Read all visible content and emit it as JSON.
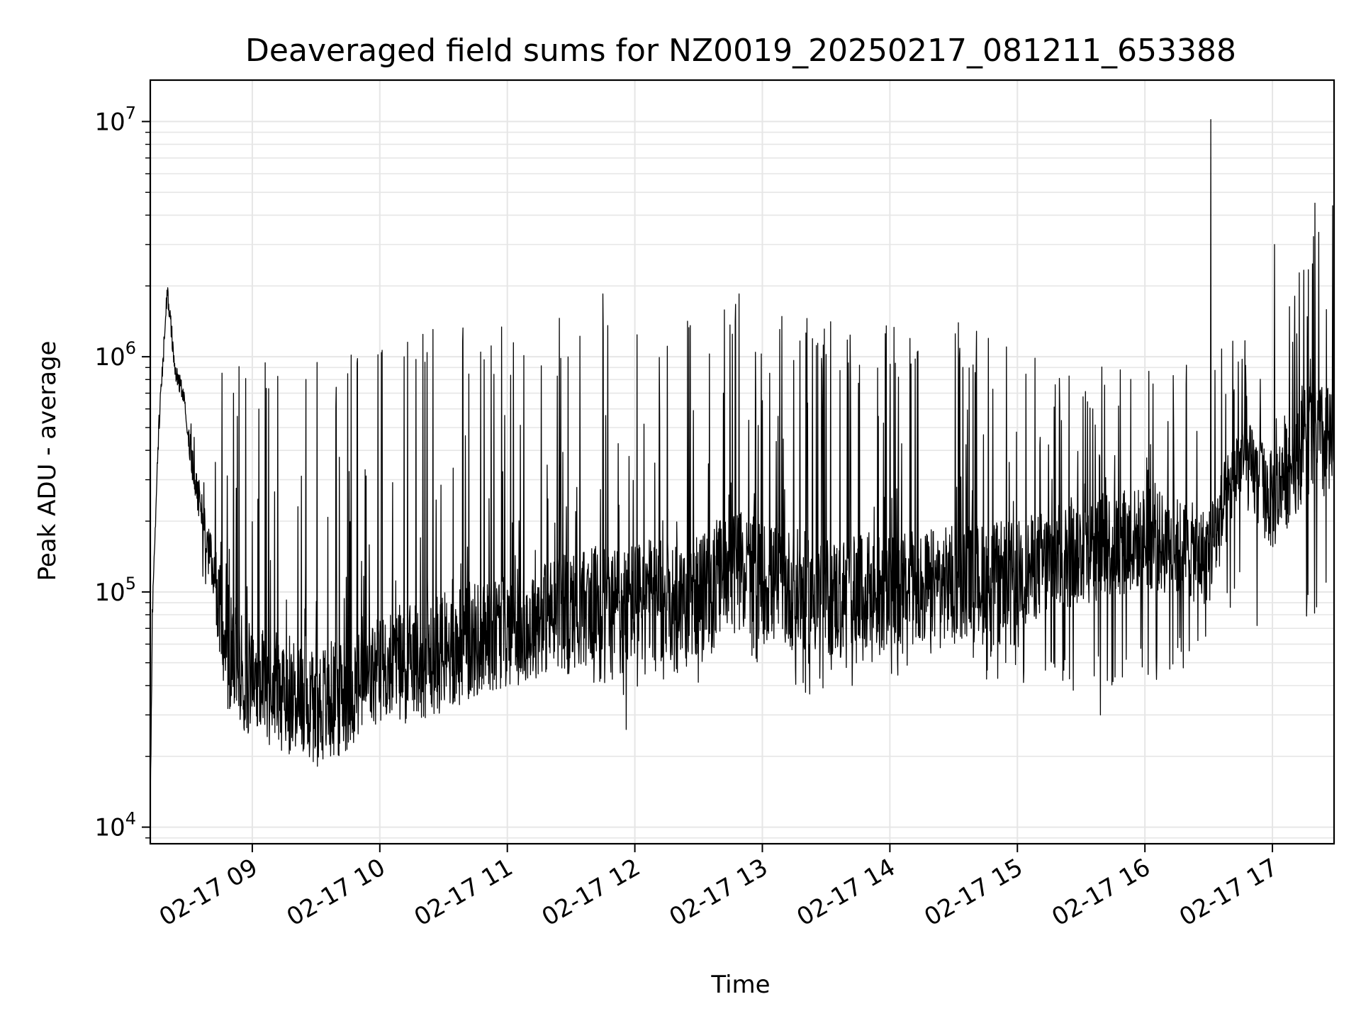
{
  "chart_data": {
    "type": "line",
    "title": "Deaveraged field sums for NZ0019_20250217_081211_653388",
    "xlabel": "Time",
    "ylabel": "Peak ADU - average",
    "yscale": "log",
    "ylim": [
      8500,
      15000000
    ],
    "xlim": [
      "2025-02-17 08:12",
      "2025-02-17 17:29"
    ],
    "grid": true,
    "line_color": "#000000",
    "grid_color": "#e6e6e6",
    "x_ticks": [
      "2025-02-17 09:00",
      "2025-02-17 10:00",
      "2025-02-17 11:00",
      "2025-02-17 12:00",
      "2025-02-17 13:00",
      "2025-02-17 14:00",
      "2025-02-17 15:00",
      "2025-02-17 16:00",
      "2025-02-17 17:00"
    ],
    "x_tick_labels": [
      "02-17 09",
      "02-17 10",
      "02-17 11",
      "02-17 12",
      "02-17 13",
      "02-17 14",
      "02-17 15",
      "02-17 16",
      "02-17 17"
    ],
    "y_ticks": [
      10000,
      100000,
      1000000,
      10000000
    ],
    "y_tick_labels": [
      {
        "base": "10",
        "exp": "4"
      },
      {
        "base": "10",
        "exp": "5"
      },
      {
        "base": "10",
        "exp": "6"
      },
      {
        "base": "10",
        "exp": "7"
      }
    ],
    "series": [
      {
        "x": [
          "2025-02-17 08:12",
          "2025-02-17 08:13",
          "2025-02-17 08:14",
          "2025-02-17 08:16",
          "2025-02-17 08:20",
          "2025-02-17 08:24",
          "2025-02-17 08:28",
          "2025-02-17 08:30",
          "2025-02-17 08:33",
          "2025-02-17 08:36",
          "2025-02-17 08:40",
          "2025-02-17 08:44",
          "2025-02-17 08:48",
          "2025-02-17 08:52",
          "2025-02-17 08:56",
          "2025-02-17 09:00",
          "2025-02-17 09:10",
          "2025-02-17 09:20",
          "2025-02-17 09:30",
          "2025-02-17 09:40",
          "2025-02-17 09:50",
          "2025-02-17 10:00",
          "2025-02-17 10:30",
          "2025-02-17 11:00",
          "2025-02-17 11:30",
          "2025-02-17 12:00",
          "2025-02-17 12:30",
          "2025-02-17 12:45",
          "2025-02-17 13:00",
          "2025-02-17 13:30",
          "2025-02-17 14:00",
          "2025-02-17 14:30",
          "2025-02-17 15:00",
          "2025-02-17 15:30",
          "2025-02-17 16:00",
          "2025-02-17 16:30",
          "2025-02-17 16:45",
          "2025-02-17 17:00",
          "2025-02-17 17:15",
          "2025-02-17 17:29"
        ],
        "y_median": [
          12000,
          80000,
          160000,
          500000,
          1900000,
          850000,
          700000,
          450000,
          300000,
          220000,
          150000,
          95000,
          60000,
          50000,
          45000,
          42000,
          38000,
          36000,
          33000,
          35000,
          40000,
          45000,
          55000,
          70000,
          85000,
          90000,
          95000,
          130000,
          110000,
          95000,
          100000,
          110000,
          120000,
          150000,
          170000,
          140000,
          380000,
          240000,
          450000,
          400000
        ],
        "y_upper": [
          12000,
          80000,
          160000,
          500000,
          1900000,
          950000,
          850000,
          700000,
          600000,
          400000,
          280000,
          1000000,
          1300000,
          1000000,
          1000000,
          950000,
          950000,
          1000000,
          1000000,
          1050000,
          1050000,
          1100000,
          1400000,
          1450000,
          1500000,
          1600000,
          1550000,
          1850000,
          1500000,
          1450000,
          1350000,
          1500000,
          1050000,
          1000000,
          950000,
          1000000,
          1300000,
          1100000,
          3000000,
          4500000
        ],
        "y_lower": [
          12000,
          80000,
          160000,
          500000,
          1900000,
          700000,
          600000,
          300000,
          180000,
          120000,
          90000,
          48000,
          26000,
          30000,
          28000,
          27000,
          25000,
          23000,
          22000,
          25000,
          30000,
          32000,
          35000,
          40000,
          40000,
          35000,
          40000,
          50000,
          35000,
          35000,
          40000,
          45000,
          40000,
          35000,
          40000,
          50000,
          90000,
          50000,
          70000,
          100000
        ]
      }
    ],
    "peaks": [
      {
        "x": "2025-02-17 16:31",
        "y": 10200000
      },
      {
        "x": "2025-02-17 17:20",
        "y": 4500000
      },
      {
        "x": "2025-02-17 17:01",
        "y": 3000000
      },
      {
        "x": "2025-02-17 12:49",
        "y": 1850000
      },
      {
        "x": "2025-02-17 11:45",
        "y": 1850000
      },
      {
        "x": "2025-02-17 15:39",
        "y": 30000
      },
      {
        "x": "2025-02-17 11:56",
        "y": 26000
      }
    ]
  }
}
